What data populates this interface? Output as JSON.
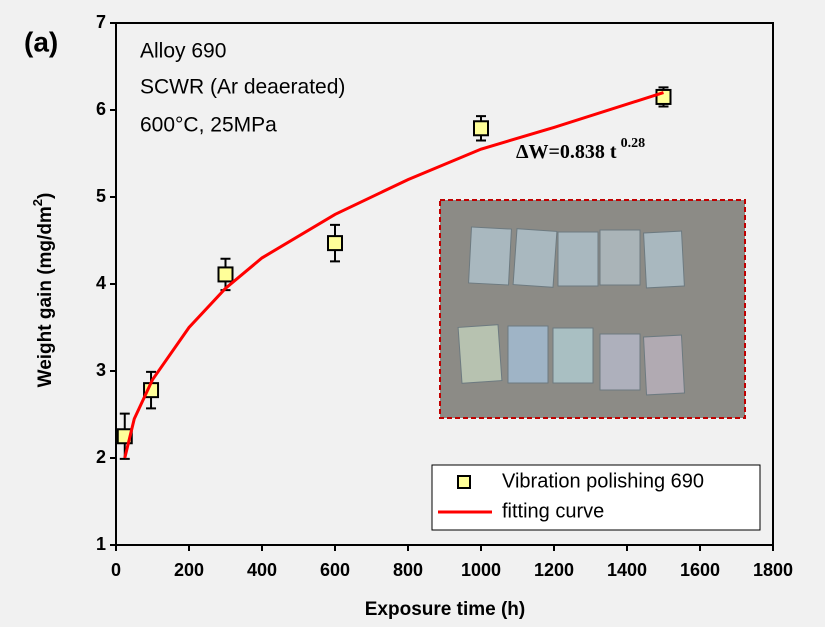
{
  "chart_data": {
    "type": "scatter",
    "panel_label": "(a)",
    "annotations": [
      "Alloy 690",
      "SCWR (Ar deaerated)",
      "600°C, 25MPa"
    ],
    "equation": "ΔW=0.838 t",
    "equation_exponent": "0.28",
    "x_label": "Exposure time (h)",
    "y_label": "Weight gain (mg/dm",
    "y_label_sup": "2",
    "y_label_end": ")",
    "xlim": [
      0,
      1800
    ],
    "xticks": [
      0,
      200,
      400,
      600,
      800,
      1000,
      1200,
      1400,
      1600,
      1800
    ],
    "ylim": [
      1,
      7
    ],
    "yticks": [
      1,
      2,
      3,
      4,
      5,
      6,
      7
    ],
    "legend": "lower right",
    "series": [
      {
        "name": "Vibration polishing 690",
        "color": "#ffff99",
        "kind": "points",
        "x": [
          24,
          96,
          300,
          600,
          1000,
          1500
        ],
        "values": [
          2.25,
          2.78,
          4.11,
          4.47,
          5.79,
          6.15
        ],
        "errors": [
          0.26,
          0.21,
          0.18,
          0.21,
          0.14,
          0.11
        ]
      },
      {
        "name": "fitting curve",
        "color": "#ff0000",
        "kind": "line",
        "x": [
          24,
          50,
          100,
          200,
          300,
          400,
          600,
          800,
          1000,
          1200,
          1500
        ],
        "values": [
          2.0,
          2.45,
          2.9,
          3.5,
          3.95,
          4.3,
          4.8,
          5.2,
          5.55,
          5.8,
          6.2
        ]
      }
    ]
  }
}
